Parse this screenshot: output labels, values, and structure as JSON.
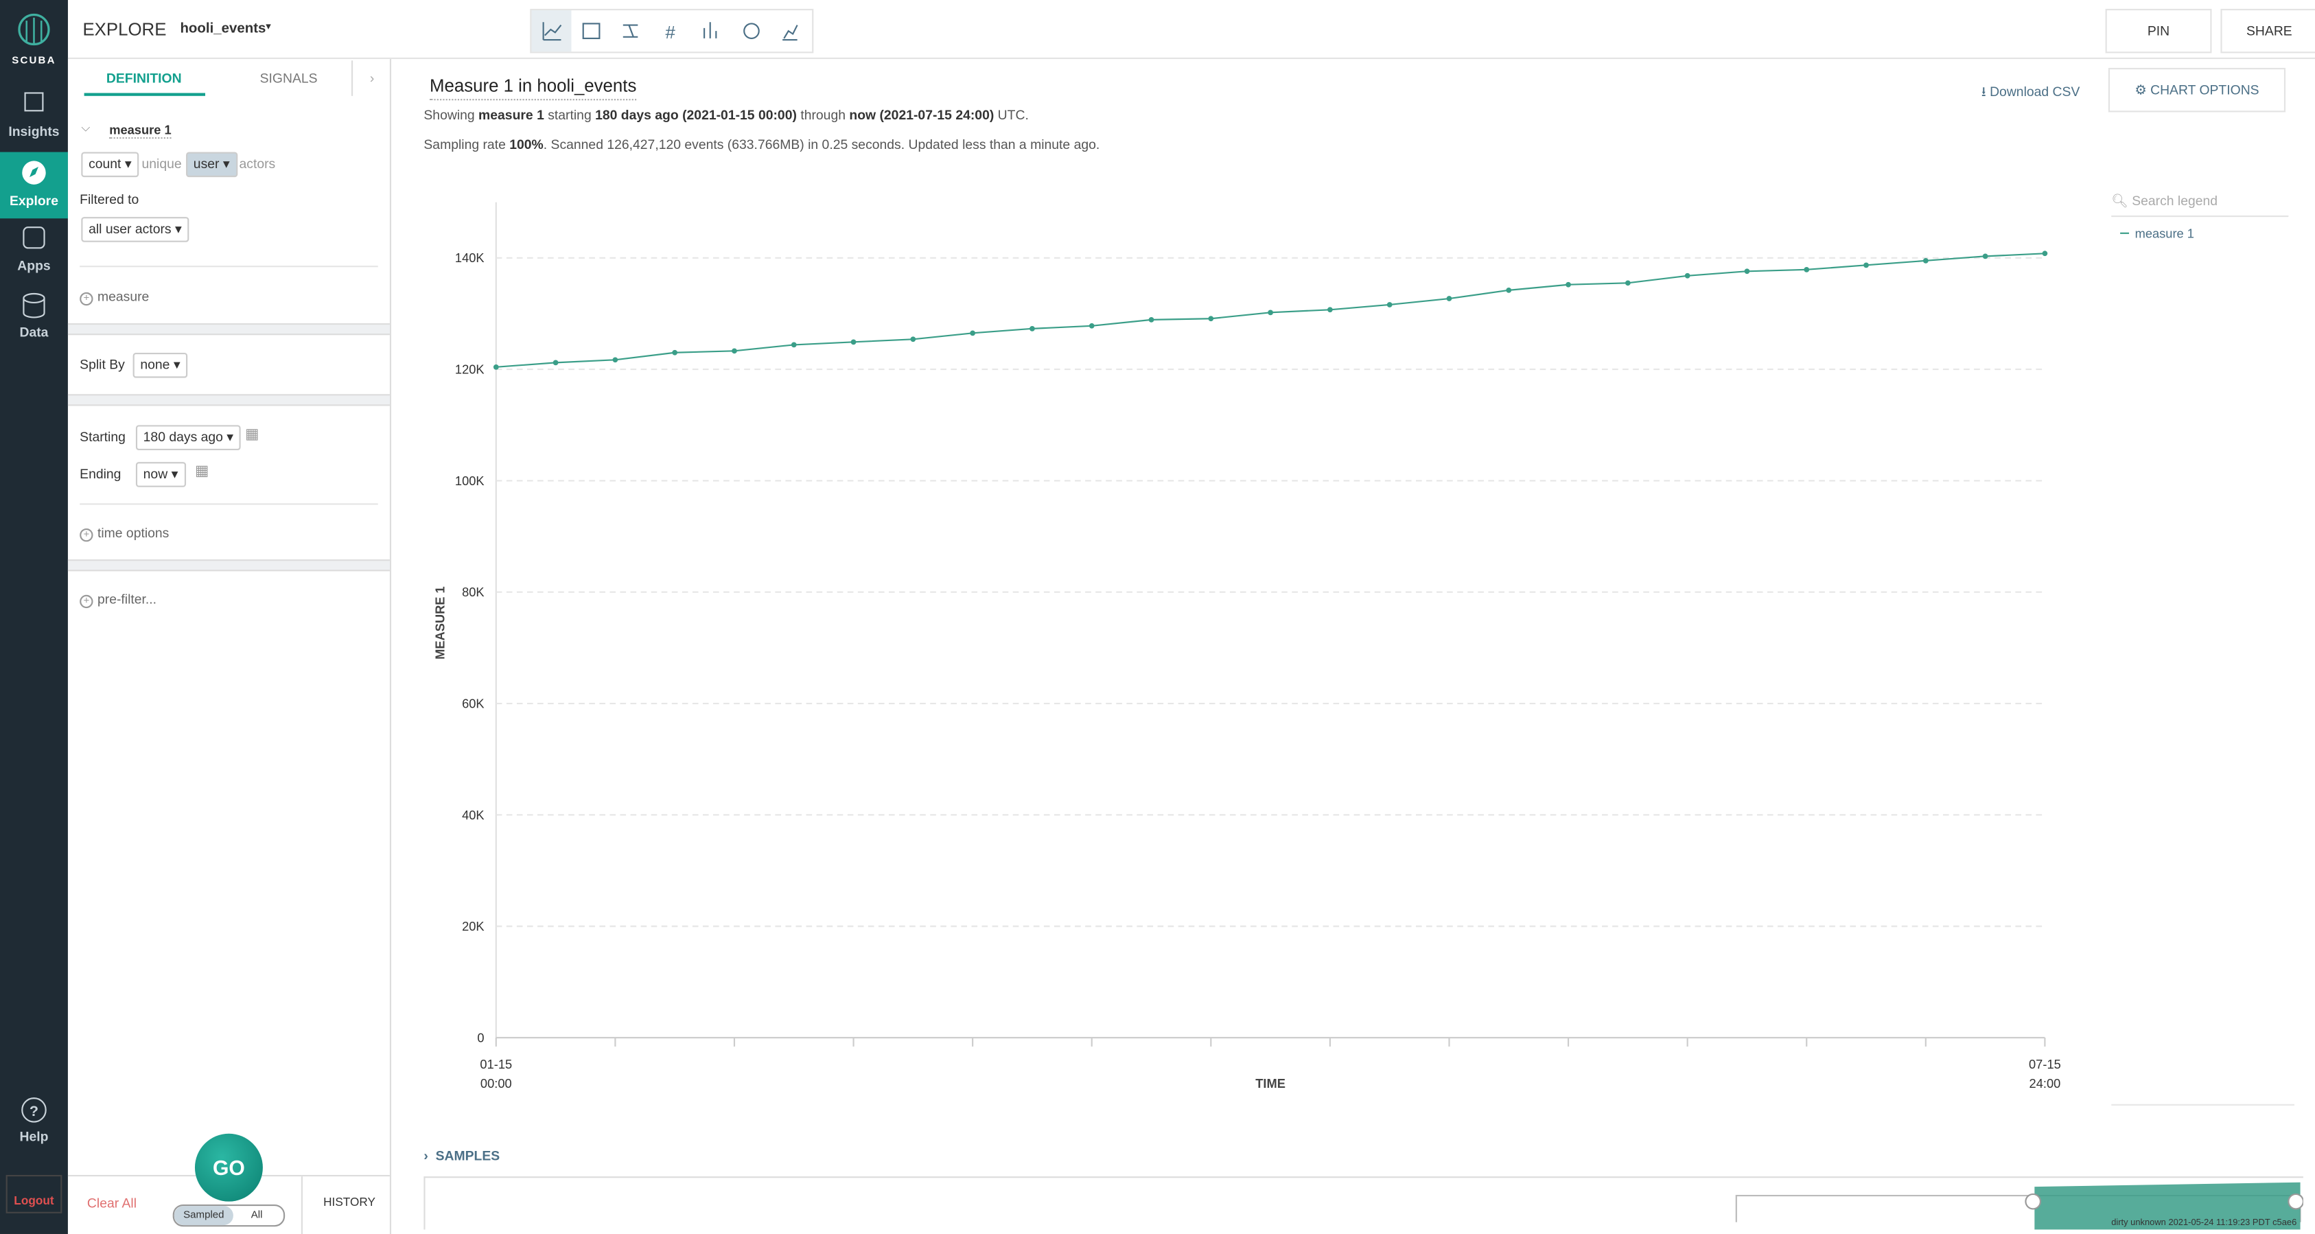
{
  "nav": {
    "logo": "SCUBA",
    "items": [
      "Insights",
      "Explore",
      "Apps",
      "Data"
    ],
    "help": "Help",
    "logout": "Logout"
  },
  "header": {
    "section": "EXPLORE",
    "dataset": "hooli_events",
    "pin": "PIN",
    "share": "SHARE"
  },
  "panel": {
    "tabs": [
      "DEFINITION",
      "SIGNALS"
    ],
    "measure_name": "measure 1",
    "aggregation": "count",
    "unique": "unique",
    "actor_type": "user",
    "actors": "actors",
    "filtered_to": "Filtered to",
    "filter": "all user actors",
    "add_measure": "measure",
    "split_by": "Split By",
    "split": "none",
    "starting": "Starting",
    "start": "180 days ago",
    "ending": "Ending",
    "end": "now",
    "time_options": "time options",
    "pre_filter": "pre-filter...",
    "clear_all": "Clear All",
    "go": "GO",
    "sampled": "Sampled",
    "all": "All",
    "history": "HISTORY"
  },
  "summary": {
    "line1": [
      "Showing ",
      "measure 1",
      " starting ",
      "180 days ago (2021-01-15 00:00)",
      " through ",
      "now (2021-07-15 24:00)",
      " UTC."
    ],
    "line2": [
      "Sampling rate ",
      "100%",
      ". Scanned 126,427,120 events (633.766MB) in 0.25 seconds. Updated less than a minute ago."
    ]
  },
  "download": "Download CSV",
  "chart_options": "CHART OPTIONS",
  "search_legend": "Search legend",
  "chart_data": {
    "type": "line",
    "title": "Measure 1 in hooli_events",
    "x_label": "TIME",
    "y_label": "MEASURE 1",
    "categories": [
      "01-15\n00:00",
      null,
      null,
      null,
      null,
      null,
      null,
      null,
      null,
      null,
      null,
      null,
      null,
      null,
      null,
      null,
      null,
      null,
      null,
      null,
      null,
      null,
      null,
      null,
      null,
      null,
      "07-15\n24:00"
    ],
    "series": [
      {
        "name": "measure 1",
        "color": "#3a9e88",
        "values": [
          120400,
          121200,
          121700,
          123000,
          123300,
          124400,
          124900,
          125400,
          126500,
          127300,
          127800,
          128900,
          129100,
          130200,
          130700,
          131600,
          132700,
          134200,
          135200,
          135500,
          136800,
          137600,
          137900,
          138700,
          139500,
          140300,
          140800
        ]
      }
    ],
    "ylim": [
      0,
      150000
    ],
    "yticks": [
      0,
      {
        "value": 20000,
        "label": "20K"
      },
      {
        "value": 40000,
        "label": "40K"
      },
      {
        "value": 60000,
        "label": "60K"
      },
      {
        "value": 80000,
        "label": "80K"
      },
      {
        "value": 100000,
        "label": "100K"
      },
      {
        "value": 120000,
        "label": "120K"
      },
      {
        "value": 140000,
        "label": "140K"
      }
    ],
    "grid": true
  },
  "samples": "SAMPLES",
  "footer": "dirty unknown 2021-05-24 11:19:23 PDT c5ae6"
}
